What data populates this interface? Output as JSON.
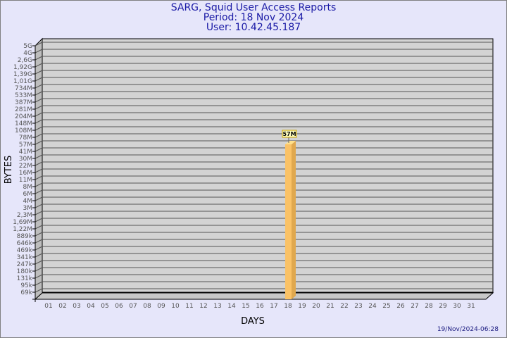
{
  "header": {
    "title": "SARG, Squid User Access Reports",
    "period": "Period: 18 Nov 2024",
    "user": "User: 10.42.45.187"
  },
  "footer": {
    "generated": "19/Nov/2024-06:28"
  },
  "colors": {
    "background": "#e6e6fa",
    "title": "#1a1aa6",
    "bar": "#fac266",
    "plot": "#d3d3d3"
  },
  "chart_data": {
    "type": "bar",
    "xlabel": "DAYS",
    "ylabel": "BYTES",
    "categories": [
      "01",
      "02",
      "03",
      "04",
      "05",
      "06",
      "07",
      "08",
      "09",
      "10",
      "11",
      "12",
      "13",
      "14",
      "15",
      "16",
      "17",
      "18",
      "19",
      "20",
      "21",
      "22",
      "23",
      "24",
      "25",
      "26",
      "27",
      "28",
      "29",
      "30",
      "31"
    ],
    "y_ticks": [
      "5G",
      "4G",
      "2,6G",
      "1,92G",
      "1,39G",
      "1,01G",
      "734M",
      "533M",
      "387M",
      "281M",
      "204M",
      "148M",
      "108M",
      "78M",
      "57M",
      "41M",
      "30M",
      "22M",
      "16M",
      "11M",
      "8M",
      "6M",
      "4M",
      "3M",
      "2,3M",
      "1,69M",
      "1,22M",
      "889k",
      "646k",
      "469k",
      "341k",
      "247k",
      "180k",
      "131k",
      "95k",
      "69k"
    ],
    "y_scale": "log",
    "grid": true,
    "series": [
      {
        "points": [
          {
            "x": "18",
            "y": "57M",
            "label": "57M"
          }
        ]
      }
    ]
  }
}
